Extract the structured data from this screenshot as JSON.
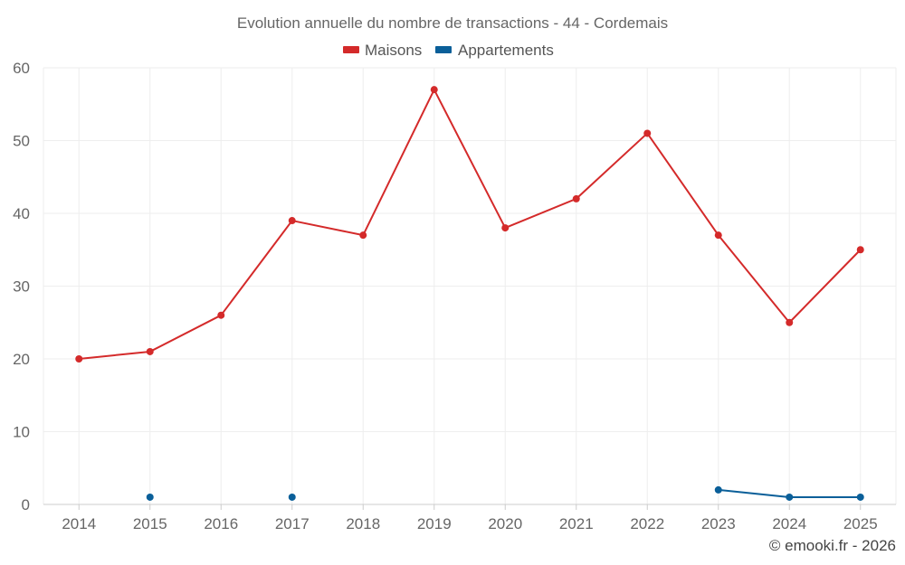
{
  "chart_data": {
    "type": "line",
    "title": "Evolution annuelle du nombre de transactions - 44 - Cordemais",
    "categories": [
      "2014",
      "2015",
      "2016",
      "2017",
      "2018",
      "2019",
      "2020",
      "2021",
      "2022",
      "2023",
      "2024",
      "2025"
    ],
    "ylim": [
      0,
      60
    ],
    "yticks": [
      0,
      10,
      20,
      30,
      40,
      50,
      60
    ],
    "grid": true,
    "legend_position": "top-center",
    "series": [
      {
        "name": "Maisons",
        "color": "#d42a2a",
        "values": [
          20,
          21,
          26,
          39,
          37,
          57,
          38,
          42,
          51,
          37,
          25,
          35
        ]
      },
      {
        "name": "Appartements",
        "color": "#0a5f99",
        "values": [
          null,
          1,
          null,
          1,
          null,
          null,
          null,
          null,
          null,
          2,
          1,
          1
        ]
      }
    ]
  },
  "footer": {
    "credit": "© emooki.fr - 2026"
  }
}
